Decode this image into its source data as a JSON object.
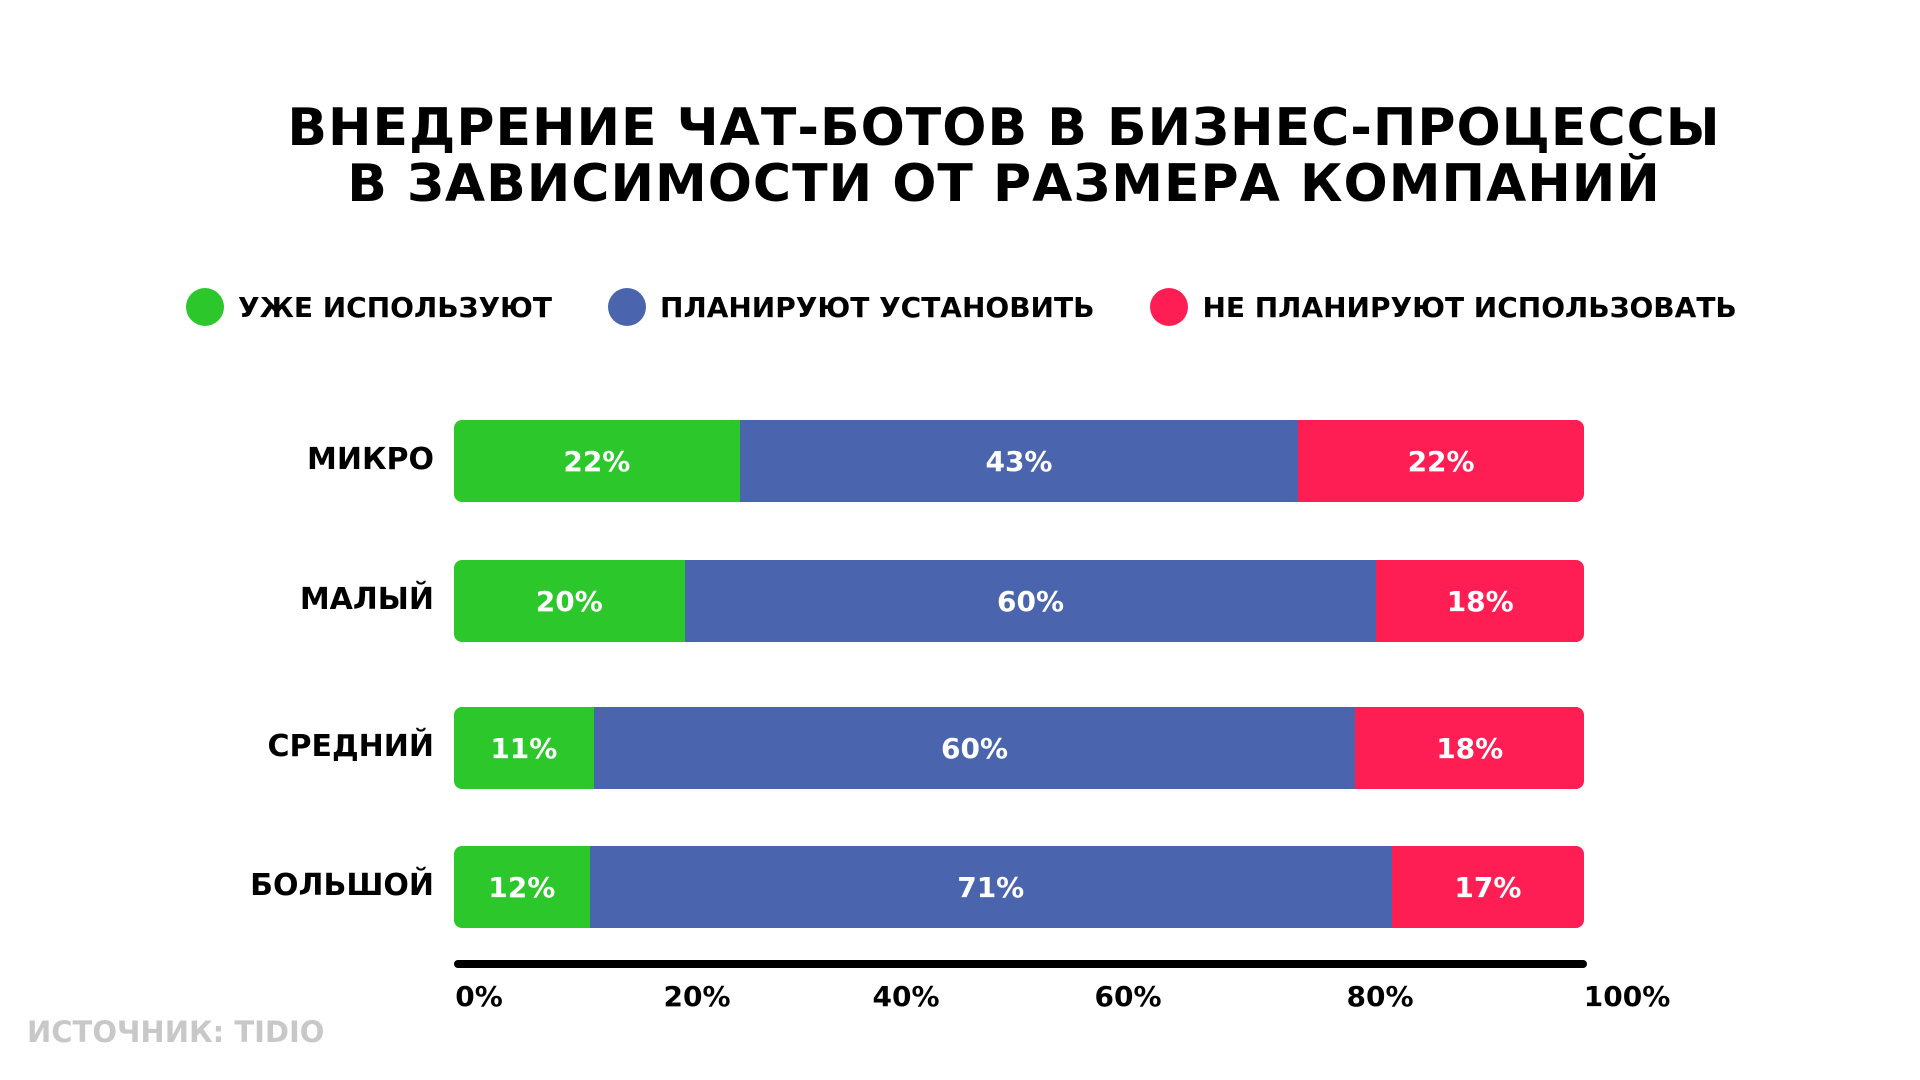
{
  "chart_data": {
    "type": "bar",
    "stacked": true,
    "orientation": "horizontal",
    "title": [
      "ВНЕДРЕНИЕ ЧАТ-БОТОВ В БИЗНЕС-ПРОЦЕССЫ",
      "В ЗАВИСИМОСТИ ОТ РАЗМЕРА КОМПАНИЙ"
    ],
    "categories": [
      "МИКРО",
      "МАЛЫЙ",
      "СРЕДНИЙ",
      "БОЛЬШОЙ"
    ],
    "series": [
      {
        "name": "УЖЕ ИСПОЛЬЗУЮТ",
        "color": "#2bc72b",
        "values": [
          22,
          20,
          11,
          12
        ],
        "labels": [
          "22%",
          "20%",
          "11%",
          "12%"
        ]
      },
      {
        "name": "ПЛАНИРУЮТ УСТАНОВИТЬ",
        "color": "#4a64ae",
        "values": [
          43,
          60,
          60,
          71
        ],
        "labels": [
          "43%",
          "60%",
          "60%",
          "71%"
        ]
      },
      {
        "name": "НЕ ПЛАНИРУЮТ ИСПОЛЬЗОВАТЬ",
        "color": "#ff1e54",
        "values": [
          22,
          18,
          18,
          17
        ],
        "labels": [
          "22%",
          "18%",
          "18%",
          "17%"
        ]
      }
    ],
    "xticks": [
      "0%",
      "20%",
      "40%",
      "60%",
      "80%",
      "100%"
    ],
    "xlim": [
      0,
      100
    ],
    "legend": "top",
    "grid": false
  },
  "source": "ИСТОЧНИК: TIDIO"
}
